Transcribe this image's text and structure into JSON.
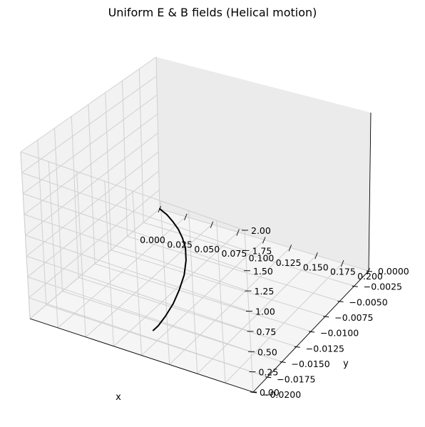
{
  "chart_data": {
    "type": "line3d",
    "title": "Uniform E & B fields (Helical motion)",
    "xlabel": "x",
    "ylabel": "y",
    "zlabel": "",
    "xlim": [
      0.0,
      0.2
    ],
    "ylim": [
      -0.02,
      0.0
    ],
    "zlim": [
      0.0,
      2.0
    ],
    "grid": true,
    "x_ticks": [
      "0.000",
      "0.025",
      "0.050",
      "0.075",
      "0.100",
      "0.125",
      "0.150",
      "0.175",
      "0.200"
    ],
    "y_ticks": [
      "0.0000",
      "−0.0025",
      "−0.0050",
      "−0.0075",
      "−0.0100",
      "−0.0125",
      "−0.0150",
      "−0.0175",
      "−0.0200"
    ],
    "z_ticks": [
      "0.00",
      "0.25",
      "0.50",
      "0.75",
      "1.00",
      "1.25",
      "1.50",
      "1.75",
      "2.00"
    ],
    "series": [
      {
        "color": "#000000",
        "points": [
          {
            "x": 0.0,
            "y": 0.0,
            "z": 0.0
          },
          {
            "x": 0.01,
            "y": -0.0005,
            "z": 0.0
          },
          {
            "x": 0.02,
            "y": -0.0012,
            "z": 0.0
          },
          {
            "x": 0.03,
            "y": -0.002,
            "z": 0.0
          },
          {
            "x": 0.04,
            "y": -0.003,
            "z": 0.0
          },
          {
            "x": 0.05,
            "y": -0.0042,
            "z": 0.0
          },
          {
            "x": 0.06,
            "y": -0.0058,
            "z": 0.0
          },
          {
            "x": 0.07,
            "y": -0.0078,
            "z": 0.0
          },
          {
            "x": 0.078,
            "y": -0.01,
            "z": 0.0
          },
          {
            "x": 0.084,
            "y": -0.012,
            "z": 0.0
          },
          {
            "x": 0.088,
            "y": -0.014,
            "z": 0.0
          },
          {
            "x": 0.09,
            "y": -0.0155,
            "z": 0.0
          },
          {
            "x": 0.09,
            "y": -0.0163,
            "z": 0.0
          }
        ]
      }
    ]
  }
}
